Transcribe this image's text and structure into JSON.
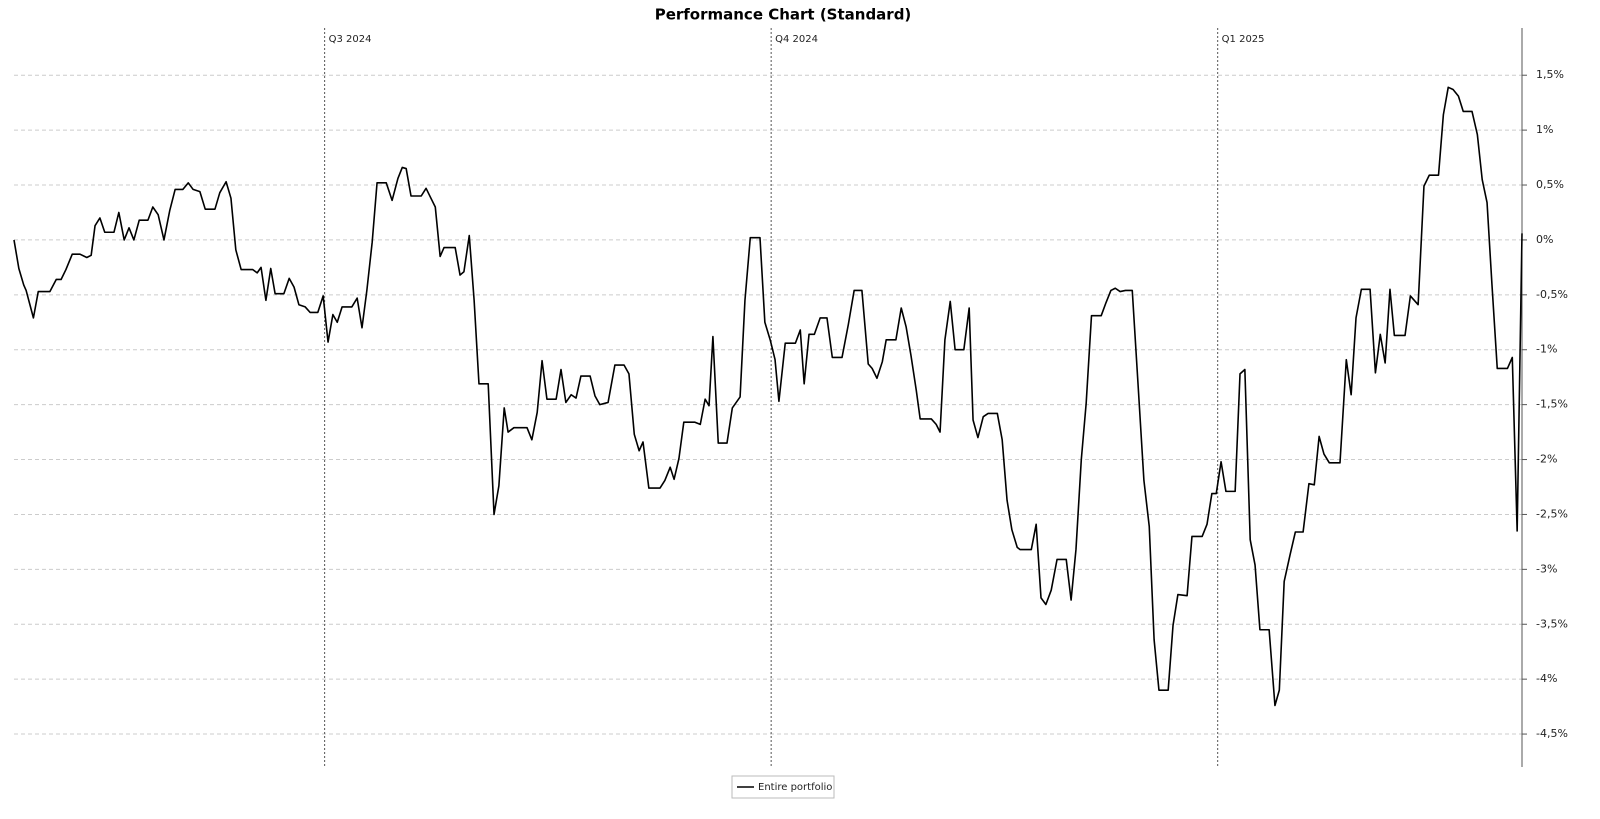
{
  "chart_data": {
    "type": "line",
    "title": "Performance Chart (Standard)",
    "x": [
      0,
      1,
      2,
      2.5,
      4,
      5,
      7.4,
      8.7,
      9.7,
      10.7,
      12,
      13.6,
      15,
      15.9,
      16.7,
      17.7,
      18.7,
      20.6,
      21.6,
      22.7,
      23.7,
      24.7,
      25.8,
      27.6,
      28.6,
      29.7,
      30.9,
      32.1,
      33.2,
      34.8,
      35.9,
      36.9,
      38.3,
      39.4,
      41.4,
      42.4,
      43.7,
      44.7,
      45.7,
      46.8,
      49.2,
      50.1,
      50.9,
      51.9,
      52.9,
      53.8,
      55.6,
      56.7,
      57.7,
      58.7,
      60,
      61,
      62.6,
      63.7,
      64.7,
      65.7,
      66.6,
      67.6,
      69.6,
      70.7,
      71.7,
      72.7,
      73.8,
      74.8,
      76.7,
      77.9,
      79.1,
      80,
      80.8,
      81.8,
      83.9,
      84.9,
      85.9,
      86.8,
      87.8,
      88.6,
      90.9,
      91.9,
      92.7,
      93.8,
      94.8,
      95.8,
      97.7,
      98.9,
      99.9,
      101,
      101.8,
      103,
      105.7,
      106.7,
      107.8,
      108.8,
      109.8,
      111.7,
      112.7,
      113.7,
      114.8,
      115.8,
      116.8,
      118.7,
      119.7,
      120.7,
      122.4,
      123.8,
      125.7,
      126.7,
      127.8,
      128.8,
      129.6,
      130.8,
      133.1,
      134.1,
      135.2,
      136,
      137,
      138,
      140.3,
      141.4,
      142.4,
      143.2,
      144,
      145.1,
      146.9,
      148,
      149.6,
      150.6,
      151.7,
      153.7,
      154.7,
      155.8,
      156.8,
      157.6,
      158.9,
      161,
      162,
      162.8,
      163.8,
      164.9,
      166.1,
      167.5,
      168.6,
      170.6,
      171.9,
      173.1,
      174.7,
      176,
      176.8,
      177.8,
      178.9,
      179.7,
      181.7,
      182.8,
      183.8,
      184.8,
      185.9,
      186.7,
      189,
      190,
      190.8,
      191.8,
      192.9,
      193.9,
      195.7,
      196.8,
      197.6,
      198.6,
      199.7,
      200.7,
      202.6,
      203.6,
      204.6,
      205.6,
      206.7,
      207.3,
      209.6,
      210.6,
      211.6,
      212.6,
      213.7,
      214.9,
      216.8,
      217.8,
      218.8,
      219.9,
      220.9,
      222,
      224,
      225,
      226,
      226.9,
      227.9,
      229,
      230.4,
      231.6,
      232.8,
      233.9,
      234.9,
      235.9,
      237.8,
      238.8,
      239.8,
      241.7,
      242.7,
      244.8,
      245.8,
      246.8,
      247.7,
      248.7,
      249.7,
      251.6,
      252.6,
      253.6,
      254.7,
      255.7,
      256.7,
      258.6,
      259.8,
      260.7,
      261.7,
      262.9,
      264,
      265.6,
      266.8,
      267.9,
      268.9,
      269.9,
      271,
      273.2,
      274.5,
      275.5,
      276.5,
      277.6,
      279.4,
      280.5,
      281.5,
      282.5,
      283.5,
      284.4,
      286.6,
      287.7,
      289.3,
      290.5,
      291.6,
      293.5,
      294.5,
      295.5,
      296.5,
      297.6,
      298.6,
      300.4,
      301.5,
      302.5,
      303.5,
      304.5,
      305.6,
      307.7,
      308.7,
      309.7,
      310.7
    ],
    "series": [
      {
        "name": "Entire portfolio",
        "color": "#000000",
        "values": [
          0,
          -0.26,
          -0.41,
          -0.46,
          -0.71,
          -0.47,
          -0.47,
          -0.36,
          -0.36,
          -0.27,
          -0.13,
          -0.13,
          -0.16,
          -0.14,
          0.13,
          0.2,
          0.07,
          0.07,
          0.25,
          0,
          0.11,
          0,
          0.18,
          0.18,
          0.3,
          0.23,
          0,
          0.27,
          0.46,
          0.46,
          0.52,
          0.46,
          0.44,
          0.28,
          0.28,
          0.43,
          0.53,
          0.38,
          -0.09,
          -0.27,
          -0.27,
          -0.3,
          -0.25,
          -0.55,
          -0.26,
          -0.49,
          -0.49,
          -0.35,
          -0.43,
          -0.59,
          -0.61,
          -0.66,
          -0.66,
          -0.51,
          -0.93,
          -0.68,
          -0.75,
          -0.61,
          -0.61,
          -0.53,
          -0.8,
          -0.46,
          -0.02,
          0.52,
          0.52,
          0.36,
          0.56,
          0.66,
          0.65,
          0.4,
          0.4,
          0.47,
          0.38,
          0.3,
          -0.15,
          -0.07,
          -0.07,
          -0.32,
          -0.29,
          0.04,
          -0.55,
          -1.31,
          -1.31,
          -2.5,
          -2.24,
          -1.53,
          -1.75,
          -1.71,
          -1.71,
          -1.82,
          -1.57,
          -1.1,
          -1.45,
          -1.45,
          -1.18,
          -1.48,
          -1.41,
          -1.44,
          -1.24,
          -1.24,
          -1.42,
          -1.5,
          -1.48,
          -1.14,
          -1.14,
          -1.22,
          -1.77,
          -1.92,
          -1.84,
          -2.26,
          -2.26,
          -2.19,
          -2.07,
          -2.18,
          -1.99,
          -1.66,
          -1.66,
          -1.68,
          -1.45,
          -1.51,
          -0.88,
          -1.85,
          -1.85,
          -1.53,
          -1.43,
          -0.55,
          0.02,
          0.02,
          -0.75,
          -0.91,
          -1.09,
          -1.47,
          -0.94,
          -0.94,
          -0.82,
          -1.31,
          -0.86,
          -0.86,
          -0.71,
          -0.71,
          -1.07,
          -1.07,
          -0.77,
          -0.46,
          -0.46,
          -1.13,
          -1.17,
          -1.26,
          -1.11,
          -0.91,
          -0.91,
          -0.62,
          -0.79,
          -1.05,
          -1.37,
          -1.63,
          -1.63,
          -1.68,
          -1.75,
          -0.91,
          -0.56,
          -1,
          -1,
          -0.62,
          -1.64,
          -1.8,
          -1.61,
          -1.58,
          -1.58,
          -1.82,
          -2.37,
          -2.64,
          -2.8,
          -2.82,
          -2.82,
          -2.59,
          -3.26,
          -3.32,
          -3.19,
          -2.91,
          -2.91,
          -3.28,
          -2.82,
          -2,
          -1.49,
          -0.69,
          -0.69,
          -0.57,
          -0.46,
          -0.44,
          -0.47,
          -0.46,
          -0.46,
          -1.32,
          -2.19,
          -2.61,
          -3.64,
          -4.1,
          -4.1,
          -3.51,
          -3.23,
          -3.24,
          -2.7,
          -2.7,
          -2.59,
          -2.31,
          -2.31,
          -2.02,
          -2.29,
          -2.29,
          -1.22,
          -1.18,
          -2.73,
          -2.96,
          -3.55,
          -3.55,
          -4.24,
          -4.1,
          -3.11,
          -2.87,
          -2.66,
          -2.66,
          -2.22,
          -2.23,
          -1.79,
          -1.95,
          -2.03,
          -2.03,
          -1.09,
          -1.41,
          -0.71,
          -0.45,
          -0.45,
          -1.21,
          -0.86,
          -1.12,
          -0.45,
          -0.87,
          -0.87,
          -0.51,
          -0.59,
          0.49,
          0.59,
          0.59,
          1.14,
          1.39,
          1.37,
          1.31,
          1.17,
          1.17,
          0.96,
          0.55,
          0.34,
          -0.4,
          -1.17,
          -1.17,
          -1.07,
          -2.65,
          0.06
        ]
      }
    ],
    "xlim": [
      0,
      310.7
    ],
    "xticks": [
      {
        "value": 64,
        "label": "Q3 2024"
      },
      {
        "value": 156,
        "label": "Q4 2024"
      },
      {
        "value": 248,
        "label": "Q1 2025"
      }
    ],
    "ylim": [
      -4.8,
      1.93
    ],
    "yticks": [
      {
        "value": 1.5,
        "label": "1,5%"
      },
      {
        "value": 1,
        "label": "1%"
      },
      {
        "value": 0.5,
        "label": "0,5%"
      },
      {
        "value": 0,
        "label": "0%"
      },
      {
        "value": -0.5,
        "label": "-0,5%"
      },
      {
        "value": -1,
        "label": "-1%"
      },
      {
        "value": -1.5,
        "label": "-1,5%"
      },
      {
        "value": -2,
        "label": "-2%"
      },
      {
        "value": -2.5,
        "label": "-2,5%"
      },
      {
        "value": -3,
        "label": "-3%"
      },
      {
        "value": -3.5,
        "label": "-3,5%"
      },
      {
        "value": -4,
        "label": "-4%"
      },
      {
        "value": -4.5,
        "label": "-4,5%"
      }
    ],
    "grid": true,
    "legend": "bottom"
  }
}
